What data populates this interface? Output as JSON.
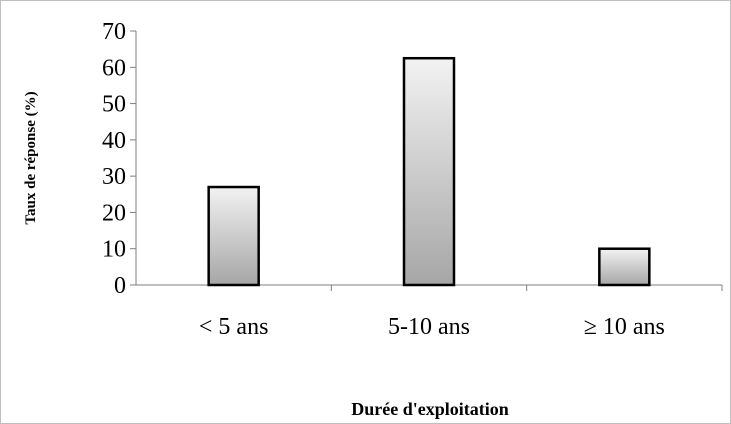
{
  "chart_data": {
    "type": "bar",
    "categories": [
      "< 5 ans",
      "5-10 ans",
      "≥ 10 ans"
    ],
    "values": [
      27,
      62.5,
      10
    ],
    "title": "",
    "xlabel": "Durée d'exploitation",
    "ylabel": "Taux de réponse (%)",
    "ylim": [
      0,
      70
    ],
    "yticks": [
      0,
      10,
      20,
      30,
      40,
      50,
      60,
      70
    ],
    "grid": false,
    "legend": "none",
    "colors": {
      "bar_fill_top": "#f2f2f2",
      "bar_fill_bottom": "#a6a6a6",
      "bar_stroke": "#000000",
      "axis": "#7f7f7f",
      "border": "#bfbfbf"
    }
  }
}
